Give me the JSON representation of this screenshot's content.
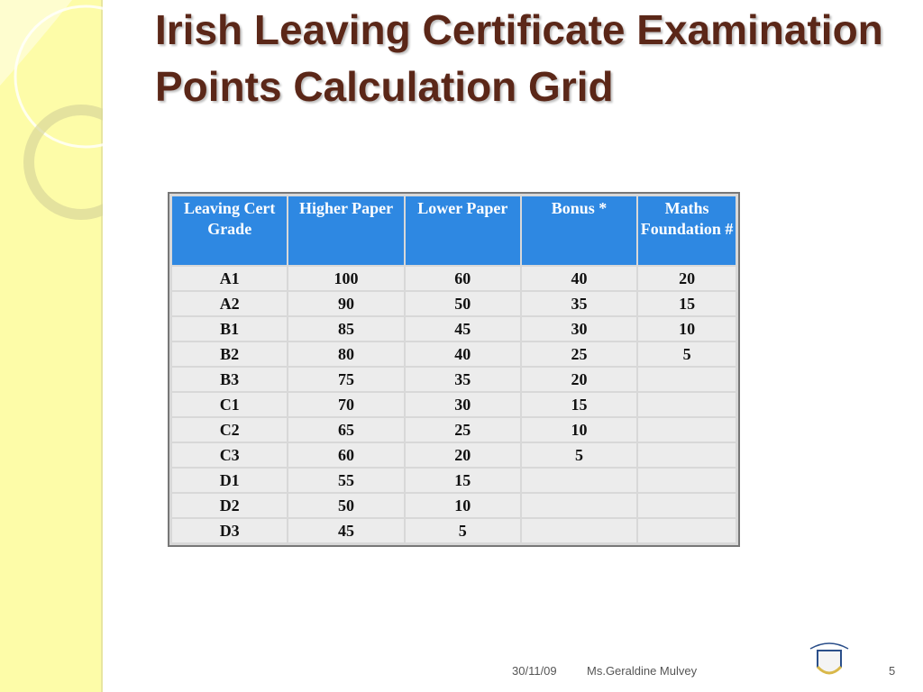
{
  "title": "Irish Leaving Certificate Examination Points Calculation Grid",
  "table": {
    "header": [
      "Leaving Cert Grade",
      "Higher Paper",
      "Lower Paper",
      "Bonus *",
      "Maths Foundation #"
    ],
    "rows": [
      [
        "A1",
        100,
        60,
        40,
        20
      ],
      [
        "A2",
        90,
        50,
        35,
        15
      ],
      [
        "B1",
        85,
        45,
        30,
        10
      ],
      [
        "B2",
        80,
        40,
        25,
        5
      ],
      [
        "B3",
        75,
        35,
        20,
        null
      ],
      [
        "C1",
        70,
        30,
        15,
        null
      ],
      [
        "C2",
        65,
        25,
        10,
        null
      ],
      [
        "C3",
        60,
        20,
        5,
        null
      ],
      [
        "D1",
        55,
        15,
        null,
        null
      ],
      [
        "D2",
        50,
        10,
        null,
        null
      ],
      [
        "D3",
        45,
        5,
        null,
        null
      ]
    ]
  },
  "footer": {
    "date": "30/11/09",
    "author": "Ms.Geraldine Mulvey",
    "page": "5"
  }
}
